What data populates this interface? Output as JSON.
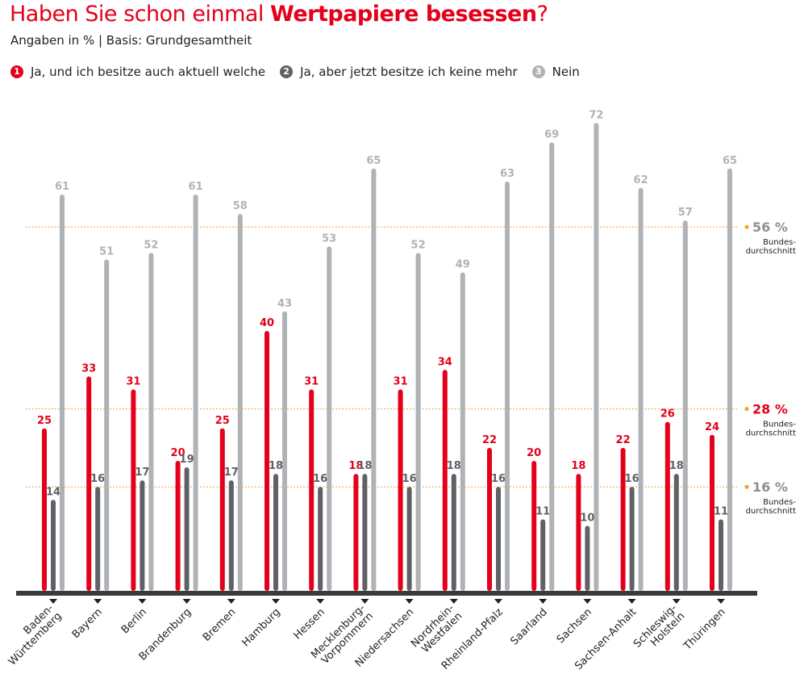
{
  "chart_data": {
    "type": "bar",
    "title": {
      "prefix": "Haben Sie schon einmal ",
      "highlight": "Wertpapiere besessen",
      "suffix": "?"
    },
    "subtitle": "Angaben in % | Basis: Grundgesamtheit",
    "categories": [
      [
        "Baden-",
        "Württemberg"
      ],
      [
        "Bayern"
      ],
      [
        "Berlin"
      ],
      [
        "Brandenburg"
      ],
      [
        "Bremen"
      ],
      [
        "Hamburg"
      ],
      [
        "Hessen"
      ],
      [
        "Mecklenburg-",
        "Vorpommern"
      ],
      [
        "Niedersachsen"
      ],
      [
        "Nordrhein-",
        "Westfalen"
      ],
      [
        "Rheinland-Pfalz"
      ],
      [
        "Saarland"
      ],
      [
        "Sachsen"
      ],
      [
        "Sachsen-Anhalt"
      ],
      [
        "Schleswig-",
        "Holstein"
      ],
      [
        "Thüringen"
      ]
    ],
    "series": [
      {
        "num": "1",
        "name": "Ja, und ich besitze auch aktuell welche",
        "color": "#e4001b",
        "values": [
          25,
          33,
          31,
          20,
          25,
          40,
          31,
          18,
          31,
          34,
          22,
          20,
          18,
          22,
          26,
          24
        ]
      },
      {
        "num": "2",
        "name": "Ja, aber jetzt besitze ich keine mehr",
        "color": "#5f6166",
        "values": [
          14,
          16,
          17,
          19,
          17,
          18,
          16,
          18,
          16,
          18,
          16,
          11,
          10,
          16,
          18,
          11
        ]
      },
      {
        "num": "3",
        "name": "Nein",
        "color": "#b0b3b6",
        "values": [
          61,
          51,
          52,
          61,
          58,
          43,
          53,
          65,
          52,
          49,
          63,
          69,
          72,
          62,
          57,
          65
        ]
      }
    ],
    "reference_lines": [
      {
        "value": 56,
        "label": "56 %",
        "caption": [
          "Bundes-",
          "durchschnitt"
        ],
        "color": "#8c8f93"
      },
      {
        "value": 28,
        "label": "28 %",
        "caption": [
          "Bundes-",
          "durchschnitt"
        ],
        "color": "#e4001b"
      },
      {
        "value": 16,
        "label": "16 %",
        "caption": [
          "Bundes-",
          "durchschnitt"
        ],
        "color": "#8c8f93"
      }
    ],
    "ylim": [
      0,
      75
    ],
    "accent_color": "#f7a03c",
    "axis_color": "#3a3a3a"
  }
}
